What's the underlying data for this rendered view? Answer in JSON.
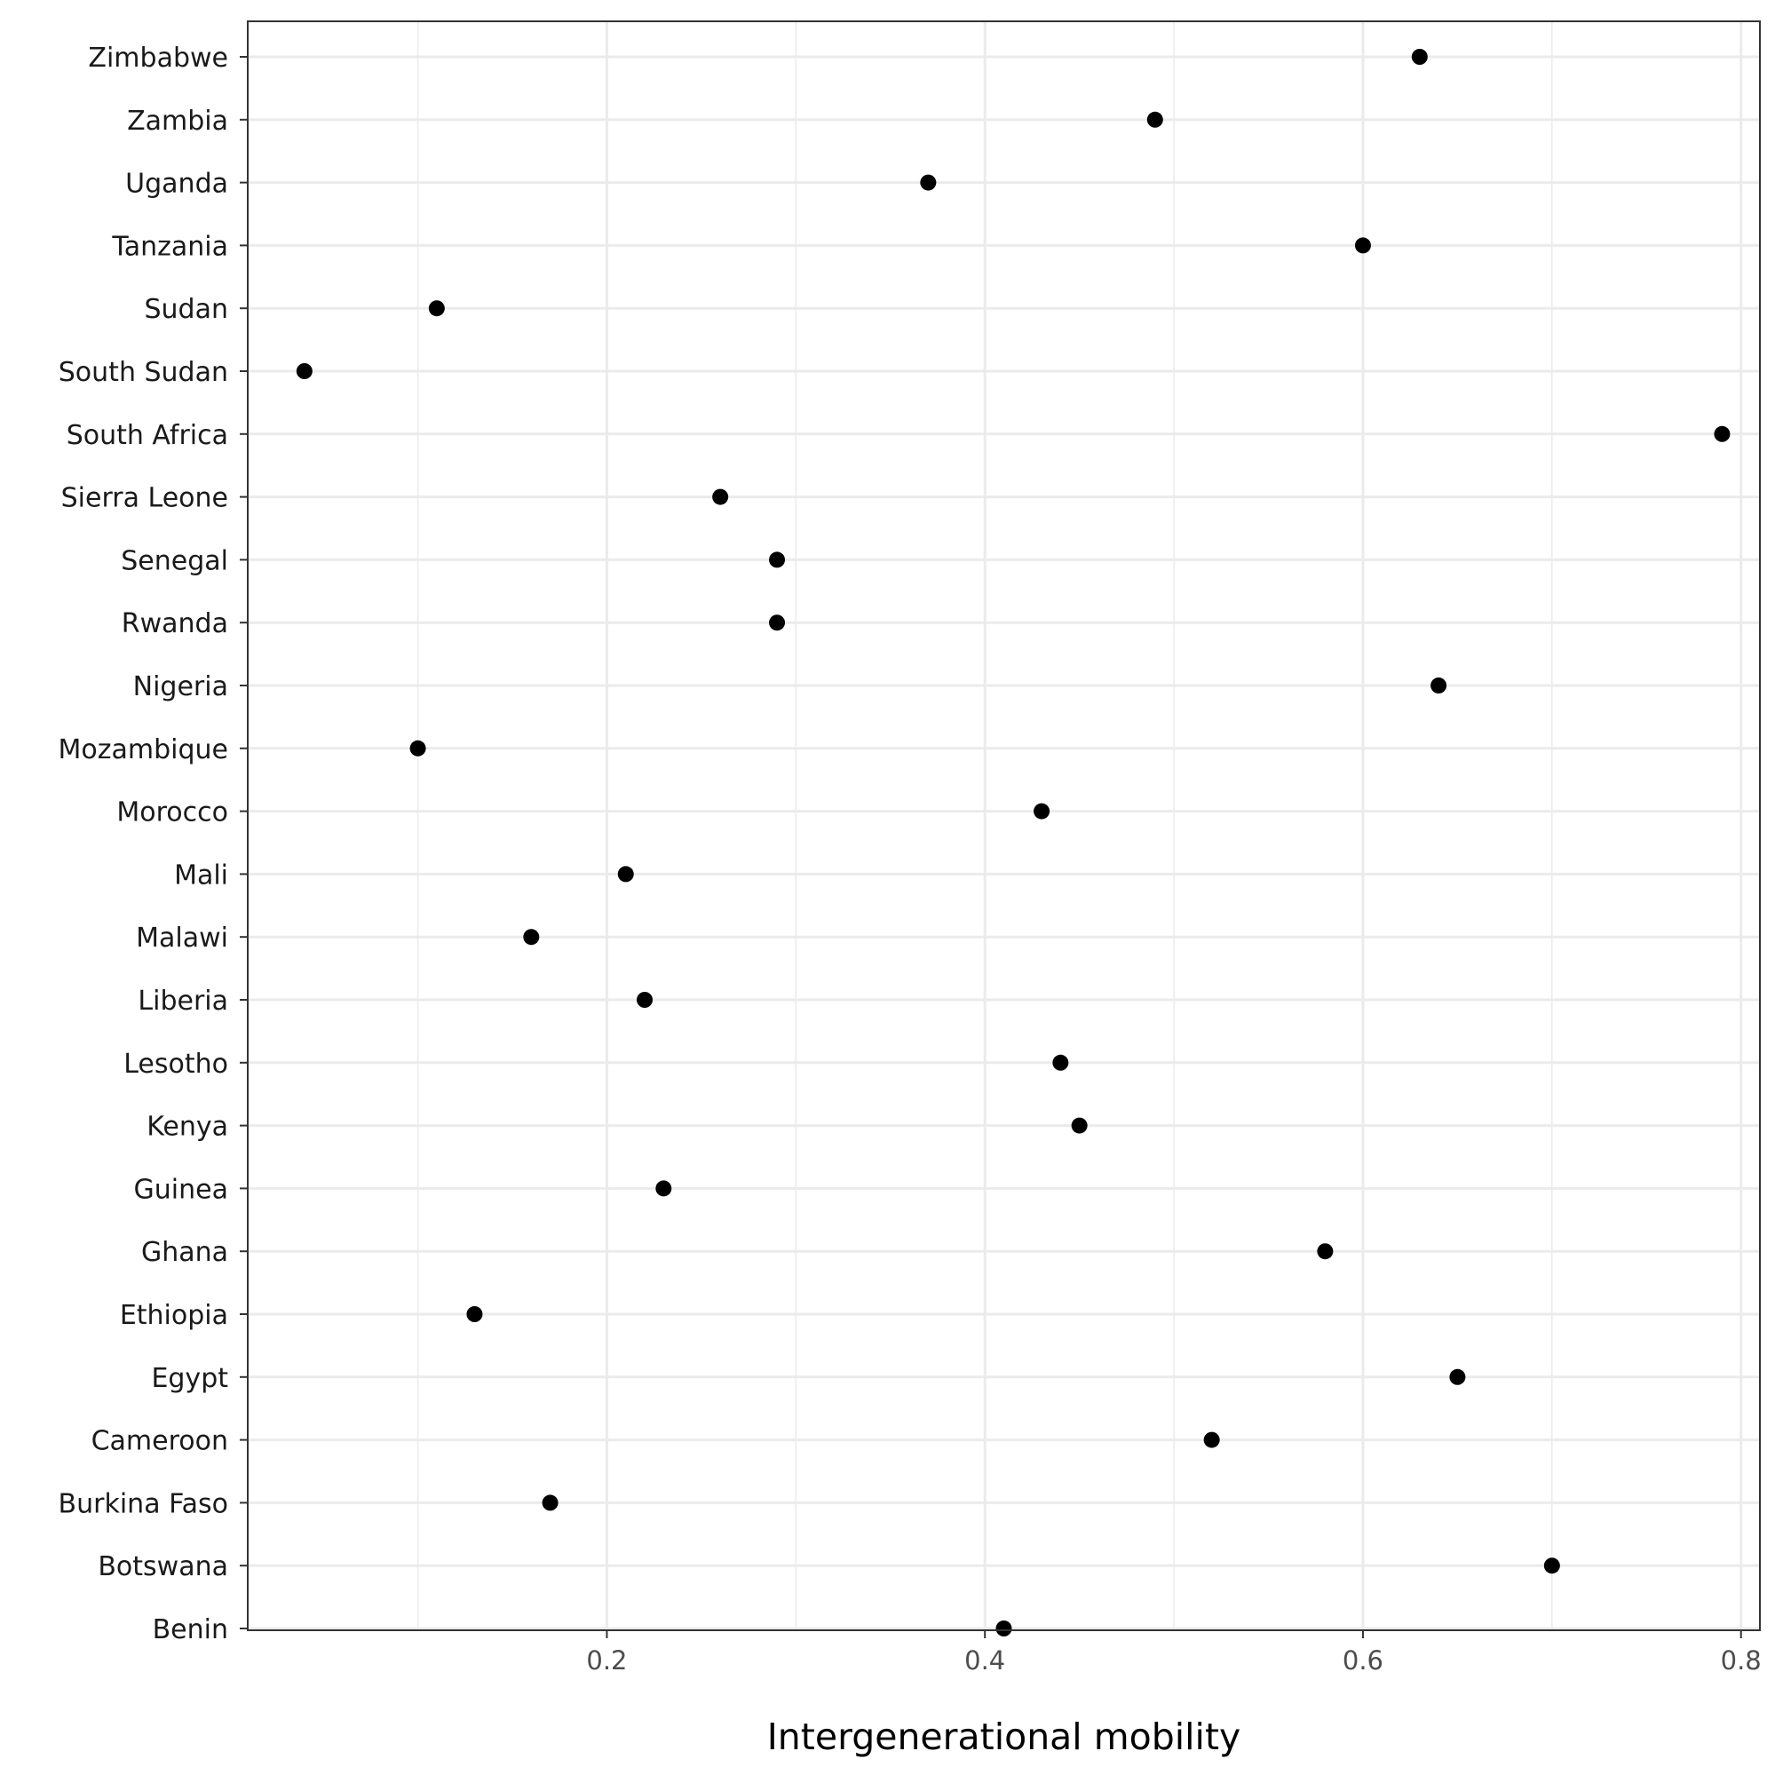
{
  "chart_data": {
    "type": "scatter",
    "xlabel": "Intergenerational mobility",
    "xlim": [
      0.01,
      0.81
    ],
    "xticks": [
      0.2,
      0.4,
      0.6,
      0.8
    ],
    "xtick_labels": [
      "0.2",
      "0.4",
      "0.6",
      "0.8"
    ],
    "grid": true,
    "categories": [
      "Benin",
      "Botswana",
      "Burkina Faso",
      "Cameroon",
      "Egypt",
      "Ethiopia",
      "Ghana",
      "Guinea",
      "Kenya",
      "Lesotho",
      "Liberia",
      "Malawi",
      "Mali",
      "Morocco",
      "Mozambique",
      "Nigeria",
      "Rwanda",
      "Senegal",
      "Sierra Leone",
      "South Africa",
      "South Sudan",
      "Sudan",
      "Tanzania",
      "Uganda",
      "Zambia",
      "Zimbabwe"
    ],
    "values": [
      0.41,
      0.7,
      0.17,
      0.52,
      0.65,
      0.13,
      0.58,
      0.23,
      0.45,
      0.44,
      0.22,
      0.16,
      0.21,
      0.43,
      0.1,
      0.64,
      0.29,
      0.29,
      0.26,
      0.79,
      0.04,
      0.11,
      0.6,
      0.37,
      0.49,
      0.63
    ],
    "colors": {
      "point": "#000000",
      "grid": "#ebebeb",
      "border": "#333333"
    }
  }
}
